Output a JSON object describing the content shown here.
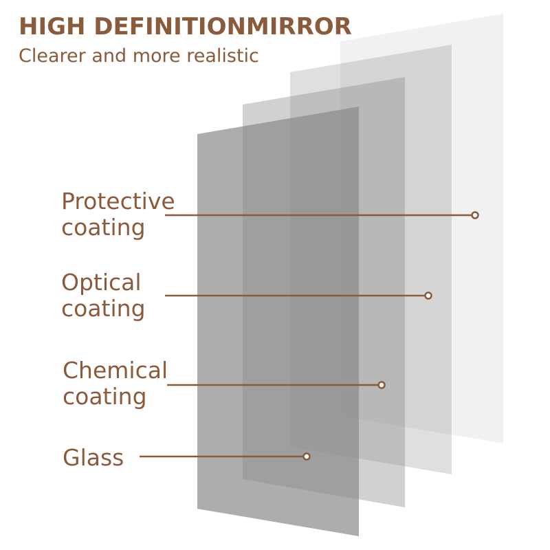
{
  "header": {
    "title": "HIGH DEFINITIONMIRROR",
    "subtitle": "Clearer and more realistic"
  },
  "labels": [
    {
      "lines": [
        "Protective",
        "coating"
      ]
    },
    {
      "lines": [
        "Optical",
        "coating"
      ]
    },
    {
      "lines": [
        "Chemical",
        "coating"
      ]
    },
    {
      "lines": [
        "Glass"
      ]
    }
  ]
}
